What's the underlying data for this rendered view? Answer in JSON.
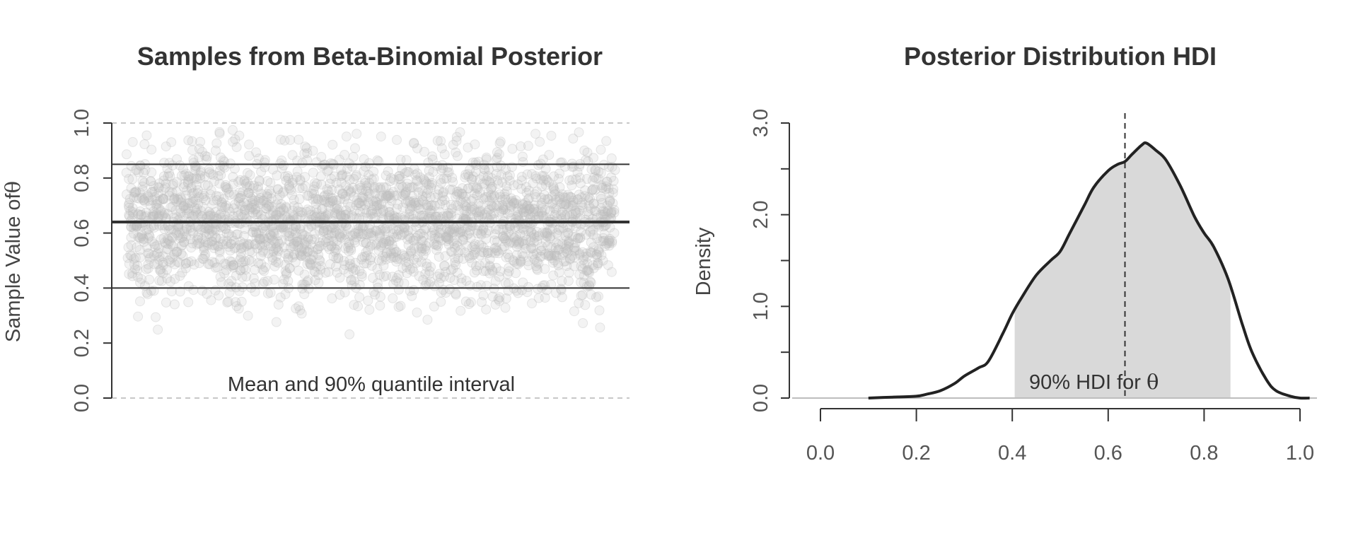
{
  "chart_data": [
    {
      "type": "scatter",
      "title": "Samples from Beta-Binomial Posterior",
      "xlabel": "",
      "ylabel": "Sample Value of",
      "ylabel_symbol": "θ",
      "ylim": [
        0,
        1
      ],
      "yticks": [
        "0.0",
        "0.2",
        "0.4",
        "0.6",
        "0.8",
        "1.0"
      ],
      "annotation": "Mean and 90% quantile interval",
      "mean": 0.64,
      "interval": [
        0.4,
        0.85
      ],
      "n_samples": 10000,
      "reference_lines": [
        0,
        1
      ],
      "point_color": "#bdbdbd"
    },
    {
      "type": "line",
      "title": "Posterior Distribution HDI",
      "xlabel": "",
      "ylabel": "Density",
      "xlim": [
        0,
        1
      ],
      "ylim": [
        0,
        3
      ],
      "xticks": [
        "0.0",
        "0.2",
        "0.4",
        "0.6",
        "0.8",
        "1.0"
      ],
      "yticks": [
        "0.0",
        "1.0",
        "2.0",
        "3.0"
      ],
      "annotation": "90% HDI for",
      "annotation_symbol": "θ",
      "hdi": [
        0.405,
        0.855
      ],
      "mean": 0.635,
      "shade_color": "#d9d9d9",
      "series": [
        {
          "x": [
            0.1,
            0.15,
            0.2,
            0.22,
            0.25,
            0.28,
            0.3,
            0.33,
            0.35,
            0.38,
            0.4,
            0.42,
            0.45,
            0.48,
            0.5,
            0.52,
            0.55,
            0.57,
            0.6,
            0.62,
            0.635,
            0.65,
            0.67,
            0.68,
            0.7,
            0.72,
            0.75,
            0.78,
            0.8,
            0.82,
            0.85,
            0.88,
            0.9,
            0.93,
            0.95,
            0.98,
            1.0,
            1.02
          ],
          "y": [
            0.0,
            0.01,
            0.02,
            0.04,
            0.08,
            0.16,
            0.24,
            0.33,
            0.4,
            0.7,
            0.92,
            1.1,
            1.34,
            1.5,
            1.6,
            1.8,
            2.1,
            2.3,
            2.48,
            2.55,
            2.58,
            2.66,
            2.76,
            2.78,
            2.7,
            2.6,
            2.32,
            1.98,
            1.8,
            1.65,
            1.3,
            0.8,
            0.5,
            0.2,
            0.08,
            0.02,
            0.0,
            0.0
          ]
        }
      ]
    }
  ]
}
